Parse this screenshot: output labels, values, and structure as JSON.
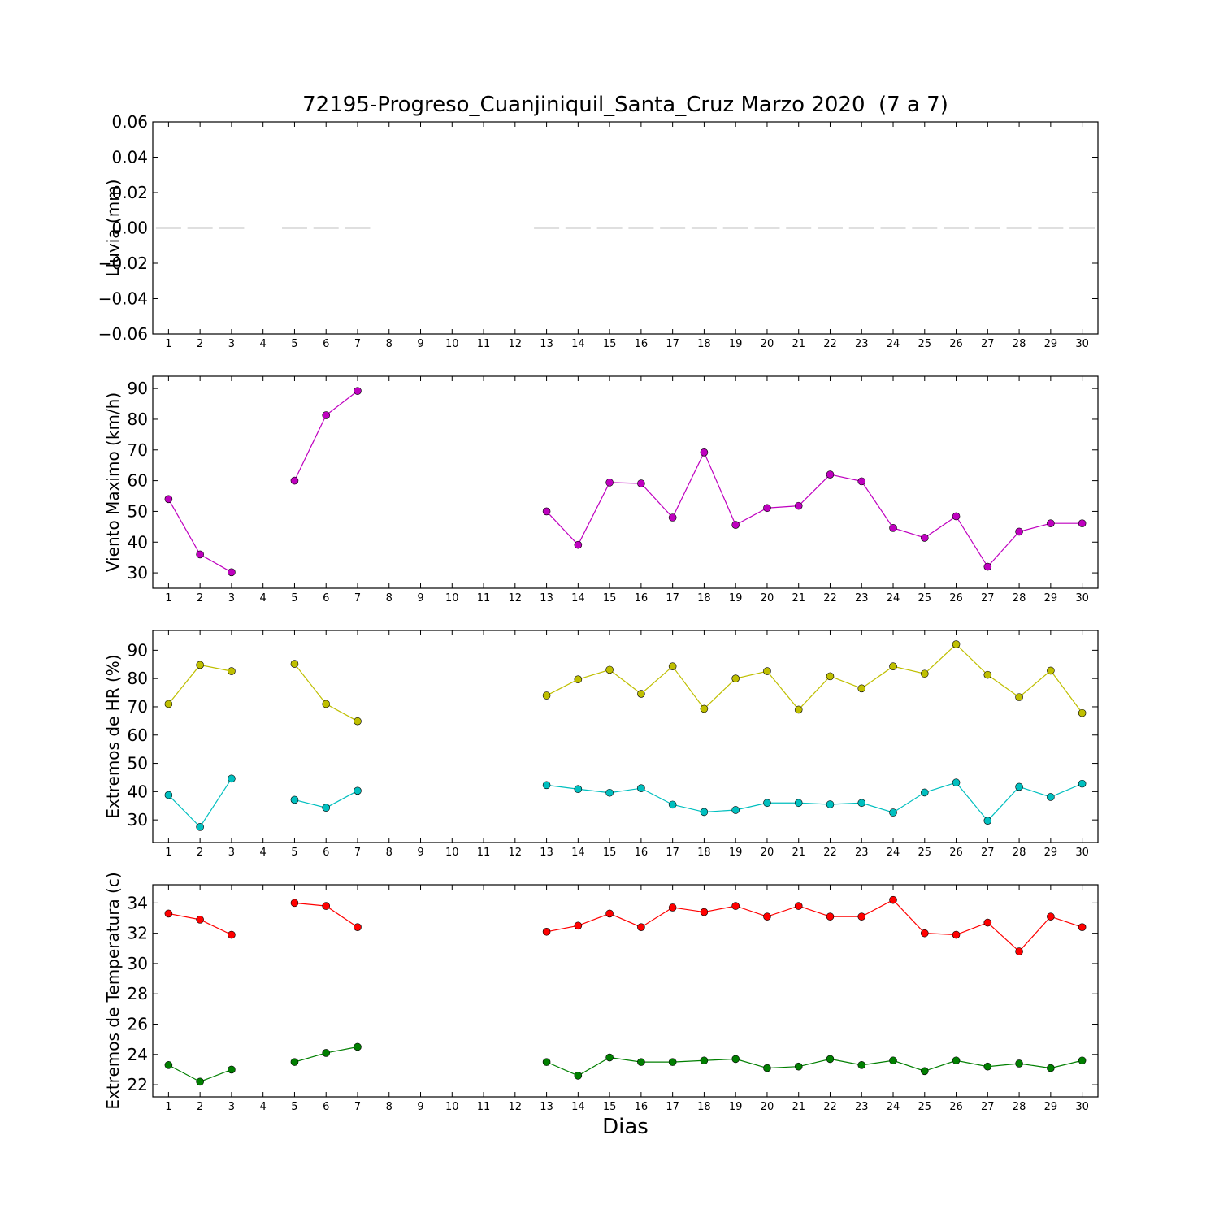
{
  "figure": {
    "title": "72195-Progreso_Cuanjiniquil_Santa_Cruz Marzo 2020  (7 a 7)",
    "xlabel": "Dias"
  },
  "chart_data": [
    {
      "type": "line",
      "ylabel": "Lluvia (mm)",
      "xlim": [
        0.5,
        30.5
      ],
      "ylim": [
        -0.06,
        0.06
      ],
      "yticks": [
        0.06,
        0.04,
        0.02,
        0.0,
        -0.02,
        -0.04,
        -0.06
      ],
      "ytick_labels": [
        "0.06",
        "0.04",
        "0.02",
        "0.00",
        "−0.02",
        "−0.04",
        "−0.06"
      ],
      "xticks": [
        1,
        2,
        3,
        4,
        5,
        6,
        7,
        8,
        9,
        10,
        11,
        12,
        13,
        14,
        15,
        16,
        17,
        18,
        19,
        20,
        21,
        22,
        23,
        24,
        25,
        26,
        27,
        28,
        29,
        30
      ],
      "grid": false,
      "series": [
        {
          "style": "bar-step",
          "color": "#000000",
          "x": [
            1,
            2,
            3,
            5,
            6,
            7,
            13,
            14,
            15,
            16,
            17,
            18,
            19,
            20,
            21,
            22,
            23,
            24,
            25,
            26,
            27,
            28,
            29,
            30
          ],
          "values": [
            0,
            0,
            0,
            0,
            0,
            0,
            0,
            0,
            0,
            0,
            0,
            0,
            0,
            0,
            0,
            0,
            0,
            0,
            0,
            0,
            0,
            0,
            0,
            0
          ]
        }
      ]
    },
    {
      "type": "line",
      "ylabel": "Viento Maximo (km/h)",
      "xlim": [
        0.5,
        30.5
      ],
      "ylim": [
        25,
        94
      ],
      "yticks": [
        30,
        40,
        50,
        60,
        70,
        80,
        90
      ],
      "ytick_labels": [
        "30",
        "40",
        "50",
        "60",
        "70",
        "80",
        "90"
      ],
      "xticks": [
        1,
        2,
        3,
        4,
        5,
        6,
        7,
        8,
        9,
        10,
        11,
        12,
        13,
        14,
        15,
        16,
        17,
        18,
        19,
        20,
        21,
        22,
        23,
        24,
        25,
        26,
        27,
        28,
        29,
        30
      ],
      "grid": false,
      "series": [
        {
          "color": "#bf00bf",
          "x": [
            1,
            2,
            3,
            4,
            5,
            6,
            7,
            8,
            9,
            10,
            11,
            12,
            13,
            14,
            15,
            16,
            17,
            18,
            19,
            20,
            21,
            22,
            23,
            24,
            25,
            26,
            27,
            28,
            29,
            30
          ],
          "values": [
            54.0,
            36.0,
            30.2,
            null,
            60.0,
            81.3,
            89.2,
            null,
            null,
            null,
            null,
            null,
            50.0,
            39.1,
            59.4,
            59.1,
            48.0,
            69.2,
            45.6,
            51.1,
            51.8,
            62.0,
            59.8,
            44.6,
            41.4,
            48.4,
            32.0,
            43.4,
            46.1,
            46.1
          ]
        }
      ]
    },
    {
      "type": "line",
      "ylabel": "Extremos de HR (%)",
      "xlim": [
        0.5,
        30.5
      ],
      "ylim": [
        22,
        97
      ],
      "yticks": [
        30,
        40,
        50,
        60,
        70,
        80,
        90
      ],
      "ytick_labels": [
        "30",
        "40",
        "50",
        "60",
        "70",
        "80",
        "90"
      ],
      "xticks": [
        1,
        2,
        3,
        4,
        5,
        6,
        7,
        8,
        9,
        10,
        11,
        12,
        13,
        14,
        15,
        16,
        17,
        18,
        19,
        20,
        21,
        22,
        23,
        24,
        25,
        26,
        27,
        28,
        29,
        30
      ],
      "grid": false,
      "series": [
        {
          "color": "#bfbf00",
          "x": [
            1,
            2,
            3,
            4,
            5,
            6,
            7,
            8,
            9,
            10,
            11,
            12,
            13,
            14,
            15,
            16,
            17,
            18,
            19,
            20,
            21,
            22,
            23,
            24,
            25,
            26,
            27,
            28,
            29,
            30
          ],
          "values": [
            71.0,
            84.8,
            82.6,
            null,
            85.2,
            71.0,
            64.9,
            null,
            null,
            null,
            null,
            null,
            74.0,
            79.7,
            83.1,
            74.6,
            84.3,
            69.3,
            80.0,
            82.6,
            69.0,
            80.8,
            76.5,
            84.3,
            81.7,
            92.1,
            81.3,
            73.4,
            82.8,
            67.8
          ]
        },
        {
          "color": "#00bfbf",
          "x": [
            1,
            2,
            3,
            4,
            5,
            6,
            7,
            8,
            9,
            10,
            11,
            12,
            13,
            14,
            15,
            16,
            17,
            18,
            19,
            20,
            21,
            22,
            23,
            24,
            25,
            26,
            27,
            28,
            29,
            30
          ],
          "values": [
            38.8,
            27.5,
            44.6,
            null,
            37.1,
            34.3,
            40.3,
            null,
            null,
            null,
            null,
            null,
            42.3,
            40.9,
            39.6,
            41.2,
            35.4,
            32.8,
            33.5,
            36.0,
            36.0,
            35.5,
            36.0,
            32.6,
            39.7,
            43.2,
            29.7,
            41.7,
            38.1,
            42.8
          ]
        }
      ]
    },
    {
      "type": "line",
      "ylabel": "Extremos de Temperatura (c)",
      "xlim": [
        0.5,
        30.5
      ],
      "ylim": [
        21.2,
        35.2
      ],
      "yticks": [
        22,
        24,
        26,
        28,
        30,
        32,
        34
      ],
      "ytick_labels": [
        "22",
        "24",
        "26",
        "28",
        "30",
        "32",
        "34"
      ],
      "xticks": [
        1,
        2,
        3,
        4,
        5,
        6,
        7,
        8,
        9,
        10,
        11,
        12,
        13,
        14,
        15,
        16,
        17,
        18,
        19,
        20,
        21,
        22,
        23,
        24,
        25,
        26,
        27,
        28,
        29,
        30
      ],
      "grid": false,
      "series": [
        {
          "color": "#ff0000",
          "x": [
            1,
            2,
            3,
            4,
            5,
            6,
            7,
            8,
            9,
            10,
            11,
            12,
            13,
            14,
            15,
            16,
            17,
            18,
            19,
            20,
            21,
            22,
            23,
            24,
            25,
            26,
            27,
            28,
            29,
            30
          ],
          "values": [
            33.3,
            32.9,
            31.9,
            null,
            34.0,
            33.8,
            32.4,
            null,
            null,
            null,
            null,
            null,
            32.1,
            32.5,
            33.3,
            32.4,
            33.7,
            33.4,
            33.8,
            33.1,
            33.8,
            33.1,
            33.1,
            34.2,
            32.0,
            31.9,
            32.7,
            30.8,
            33.1,
            32.4
          ]
        },
        {
          "color": "#007f00",
          "x": [
            1,
            2,
            3,
            4,
            5,
            6,
            7,
            8,
            9,
            10,
            11,
            12,
            13,
            14,
            15,
            16,
            17,
            18,
            19,
            20,
            21,
            22,
            23,
            24,
            25,
            26,
            27,
            28,
            29,
            30
          ],
          "values": [
            23.3,
            22.2,
            23.0,
            null,
            23.5,
            24.1,
            24.5,
            null,
            null,
            null,
            null,
            null,
            23.5,
            22.6,
            23.8,
            23.5,
            23.5,
            23.6,
            23.7,
            23.1,
            23.2,
            23.7,
            23.3,
            23.6,
            22.9,
            23.6,
            23.2,
            23.4,
            23.1,
            23.6
          ]
        }
      ]
    }
  ]
}
